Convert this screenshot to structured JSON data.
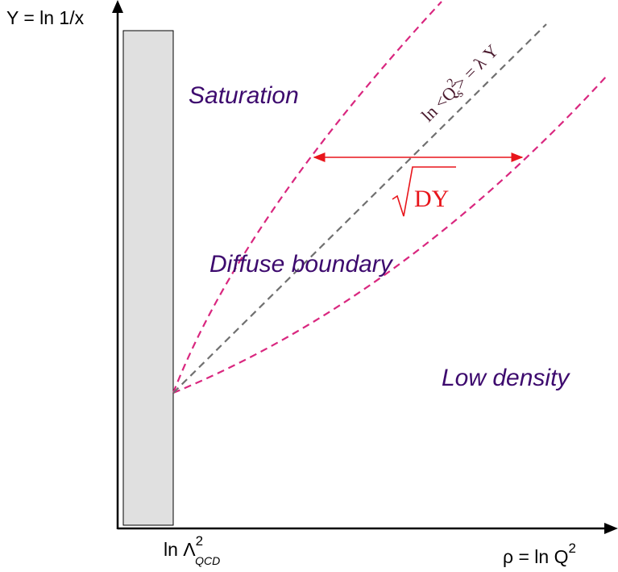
{
  "axes": {
    "y_label": "Y = ln 1/x",
    "x_label_prefix": "ρ = ln Q",
    "x_label_exponent": "2",
    "tick_prefix": "ln Λ",
    "tick_exponent": "2",
    "tick_subscript": "QCD"
  },
  "regions": {
    "saturation": "Saturation",
    "diffuse": "Diffuse boundary",
    "low_density": "Low density"
  },
  "saturation_line": {
    "prefix": "ln <Q",
    "exponent": "2",
    "subscript": "s",
    "suffix": "> = λ Y"
  },
  "width_annotation": {
    "sqrt_symbol": "√",
    "text": "DY"
  },
  "colors": {
    "axis": "#000000",
    "boundary_dashed": "#d9277f",
    "saturation_line": "#707070",
    "arrow": "#e8151b",
    "region_text": "#3d0a6e",
    "nonperturbative_fill": "#e0e0e0",
    "sqrt_text": "#e8151b",
    "line_label": "#4a1a2e"
  }
}
